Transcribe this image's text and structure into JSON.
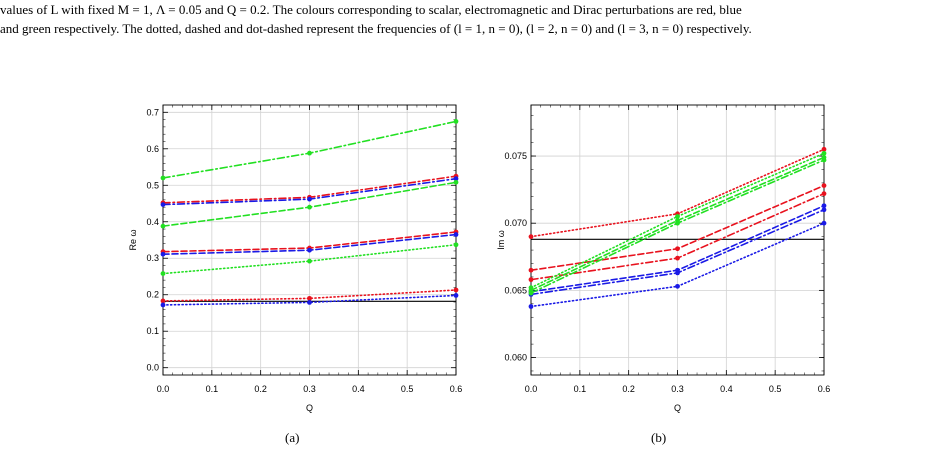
{
  "caption": {
    "line1": "values of L with fixed M = 1, Λ = 0.05 and Q = 0.2. The colours corresponding to scalar, electromagnetic and Dirac perturbations are red, blue",
    "line2": "and green respectively. The dotted, dashed and dot-dashed represent the frequencies of (l = 1, n = 0), (l = 2, n = 0) and (l = 3, n = 0) respectively."
  },
  "colors": {
    "scalar": "#e8121e",
    "electromagnetic": "#1a1ae6",
    "dirac": "#22e022"
  },
  "chart_data": [
    {
      "type": "line",
      "sublabel": "(a)",
      "xlabel": "Q",
      "ylabel": "Re ω",
      "xlim": [
        0.0,
        0.6
      ],
      "ylim": [
        -0.02,
        0.72
      ],
      "xticks": [
        "0.0",
        "0.1",
        "0.2",
        "0.3",
        "0.4",
        "0.5",
        "0.6"
      ],
      "yticks": [
        "0.0",
        "0.1",
        "0.2",
        "0.3",
        "0.4",
        "0.5",
        "0.6",
        "0.7"
      ],
      "hline": 0.182,
      "grid": true,
      "x": [
        0.0,
        0.3,
        0.6
      ],
      "series": [
        {
          "color": "scalar",
          "dash": "dotted",
          "values": [
            0.183,
            0.19,
            0.213
          ]
        },
        {
          "color": "scalar",
          "dash": "dashed",
          "values": [
            0.318,
            0.328,
            0.372
          ]
        },
        {
          "color": "scalar",
          "dash": "dotdashed",
          "values": [
            0.452,
            0.467,
            0.525
          ]
        },
        {
          "color": "electromagnetic",
          "dash": "dotted",
          "values": [
            0.172,
            0.179,
            0.198
          ]
        },
        {
          "color": "electromagnetic",
          "dash": "dashed",
          "values": [
            0.311,
            0.322,
            0.365
          ]
        },
        {
          "color": "electromagnetic",
          "dash": "dotdashed",
          "values": [
            0.447,
            0.462,
            0.518
          ]
        },
        {
          "color": "dirac",
          "dash": "dotted",
          "values": [
            0.258,
            0.292,
            0.337
          ]
        },
        {
          "color": "dirac",
          "dash": "dashed",
          "values": [
            0.388,
            0.44,
            0.508
          ]
        },
        {
          "color": "dirac",
          "dash": "dotdashed",
          "values": [
            0.52,
            0.588,
            0.675
          ]
        }
      ]
    },
    {
      "type": "line",
      "sublabel": "(b)",
      "xlabel": "Q",
      "ylabel": "Im ω",
      "xlim": [
        0.0,
        0.6
      ],
      "ylim": [
        0.0587,
        0.0788
      ],
      "xticks": [
        "0.0",
        "0.1",
        "0.2",
        "0.3",
        "0.4",
        "0.5",
        "0.6"
      ],
      "yticks": [
        "0.060",
        "0.065",
        "0.070",
        "0.075"
      ],
      "hline": 0.0688,
      "grid": true,
      "x": [
        0.0,
        0.3,
        0.6
      ],
      "series": [
        {
          "color": "scalar",
          "dash": "dotted",
          "values": [
            0.069,
            0.0707,
            0.0755
          ]
        },
        {
          "color": "scalar",
          "dash": "dashed",
          "values": [
            0.0665,
            0.0681,
            0.0728
          ]
        },
        {
          "color": "scalar",
          "dash": "dotdashed",
          "values": [
            0.0658,
            0.0674,
            0.0722
          ]
        },
        {
          "color": "electromagnetic",
          "dash": "dotted",
          "values": [
            0.0638,
            0.0653,
            0.07
          ]
        },
        {
          "color": "electromagnetic",
          "dash": "dashed",
          "values": [
            0.0649,
            0.0665,
            0.0713
          ]
        },
        {
          "color": "electromagnetic",
          "dash": "dotdashed",
          "values": [
            0.0647,
            0.0663,
            0.071
          ]
        },
        {
          "color": "dirac",
          "dash": "dotted",
          "values": [
            0.0652,
            0.0705,
            0.0752
          ]
        },
        {
          "color": "dirac",
          "dash": "dashed",
          "values": [
            0.065,
            0.0702,
            0.0749
          ]
        },
        {
          "color": "dirac",
          "dash": "dotdashed",
          "values": [
            0.0648,
            0.07,
            0.0747
          ]
        }
      ]
    }
  ]
}
